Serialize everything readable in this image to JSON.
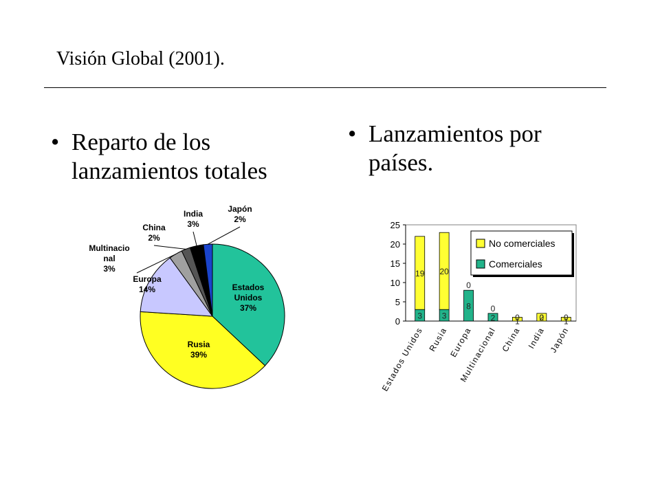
{
  "page": {
    "title": "Visión Global (2001).",
    "bullet_left": "Reparto de los lanzamientos totales",
    "bullet_right": "Lanzamientos por países.",
    "bullet_char": "•"
  },
  "chart_data": [
    {
      "type": "pie",
      "labels": [
        "Estados Unidos",
        "Rusia",
        "Europa",
        "Multinacional",
        "China",
        "India",
        "Japón"
      ],
      "label_lines": [
        [
          "Estados",
          "Unidos",
          "37%"
        ],
        [
          "Rusia",
          "39%"
        ],
        [
          "Europa",
          "14%"
        ],
        [
          "Multinacio",
          "nal",
          "3%"
        ],
        [
          "China",
          "2%"
        ],
        [
          "India",
          "3%"
        ],
        [
          "Japón",
          "2%"
        ]
      ],
      "values": [
        37,
        39,
        14,
        3,
        2,
        3,
        2
      ],
      "colors": [
        "#22c39b",
        "#ffff22",
        "#c8c8ff",
        "#a0a0a0",
        "#555555",
        "#000000",
        "#1a44cc"
      ]
    },
    {
      "type": "bar",
      "stacked": true,
      "categories": [
        "Estados Unidos",
        "Rusia",
        "Europa",
        "Multinacional",
        "China",
        "India",
        "Japón"
      ],
      "series": [
        {
          "name": "Comerciales",
          "values": [
            3,
            3,
            8,
            2,
            0,
            0,
            0
          ],
          "color": "#22b38a"
        },
        {
          "name": "No comerciales",
          "values": [
            19,
            20,
            0,
            0,
            1,
            2,
            1
          ],
          "color": "#ffff33"
        }
      ],
      "data_labels": {
        "Comerciales": [
          "3",
          "3",
          "8",
          "2",
          "0",
          "0",
          "0"
        ],
        "No comerciales": [
          "19",
          "20",
          "0",
          "0",
          "1",
          "2",
          "1"
        ]
      },
      "yticks": [
        0,
        5,
        10,
        15,
        20,
        25
      ],
      "ylim": [
        0,
        25
      ],
      "legend": {
        "position": "top-right",
        "order": [
          "No comerciales",
          "Comerciales"
        ]
      }
    }
  ]
}
